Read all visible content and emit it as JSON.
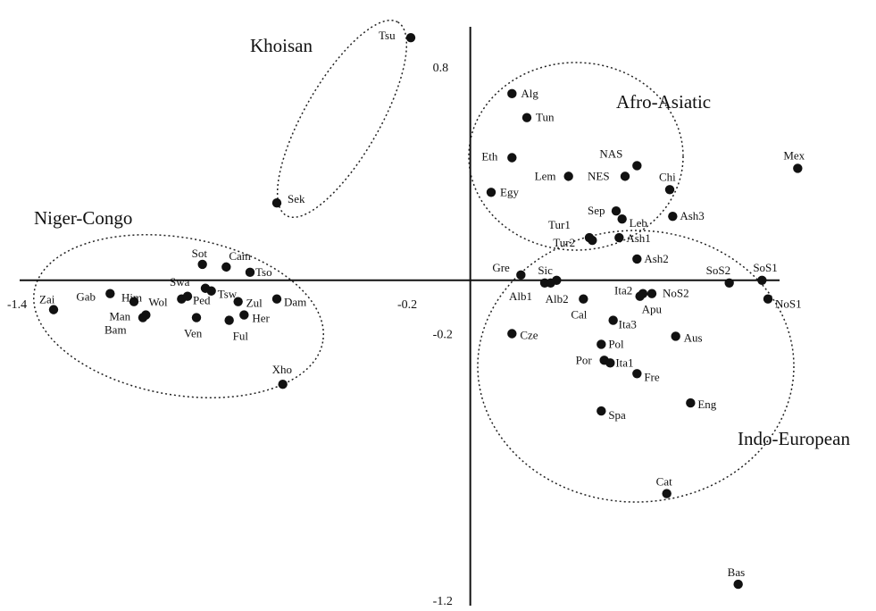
{
  "chart_data": {
    "type": "scatter",
    "title": "",
    "xlabel": "",
    "ylabel": "",
    "xlim": [
      -1.4,
      1.0
    ],
    "ylim": [
      -1.2,
      0.95
    ],
    "x_ticks": [
      {
        "value": -1.4,
        "label": "-1.4"
      },
      {
        "value": -0.2,
        "label": "-0.2"
      }
    ],
    "y_ticks": [
      {
        "value": 0.8,
        "label": "0.8"
      },
      {
        "value": -0.2,
        "label": "-0.2"
      },
      {
        "value": -1.2,
        "label": "-1.2"
      }
    ],
    "grid": false,
    "points": [
      {
        "label": "Tsu",
        "x": -0.2,
        "y": 0.91
      },
      {
        "label": "Sek",
        "x": -0.65,
        "y": 0.29
      },
      {
        "label": "Alg",
        "x": 0.14,
        "y": 0.7
      },
      {
        "label": "Tun",
        "x": 0.19,
        "y": 0.61
      },
      {
        "label": "Eth",
        "x": 0.14,
        "y": 0.46
      },
      {
        "label": "Egy",
        "x": 0.07,
        "y": 0.33
      },
      {
        "label": "Lem",
        "x": 0.33,
        "y": 0.39
      },
      {
        "label": "NAS",
        "x": 0.56,
        "y": 0.43
      },
      {
        "label": "NES",
        "x": 0.52,
        "y": 0.39
      },
      {
        "label": "Chi",
        "x": 0.67,
        "y": 0.34
      },
      {
        "label": "Mex",
        "x": 1.1,
        "y": 0.42
      },
      {
        "label": "Sep",
        "x": 0.49,
        "y": 0.26
      },
      {
        "label": "Leb",
        "x": 0.51,
        "y": 0.23
      },
      {
        "label": "Ash3",
        "x": 0.68,
        "y": 0.24
      },
      {
        "label": "Tur1",
        "x": 0.4,
        "y": 0.16
      },
      {
        "label": "Tur2",
        "x": 0.41,
        "y": 0.15
      },
      {
        "label": "Ash1",
        "x": 0.5,
        "y": 0.16
      },
      {
        "label": "Ash2",
        "x": 0.56,
        "y": 0.08
      },
      {
        "label": "Gre",
        "x": 0.17,
        "y": 0.02
      },
      {
        "label": "Sic",
        "x": 0.29,
        "y": 0.0
      },
      {
        "label": "Alb1",
        "x": 0.25,
        "y": -0.01
      },
      {
        "label": "Alb2",
        "x": 0.27,
        "y": -0.01
      },
      {
        "label": "Ita2",
        "x": 0.58,
        "y": -0.05
      },
      {
        "label": "NoS2",
        "x": 0.61,
        "y": -0.05
      },
      {
        "label": "SoS2",
        "x": 0.87,
        "y": -0.01
      },
      {
        "label": "SoS1",
        "x": 0.98,
        "y": 0.0
      },
      {
        "label": "NoS1",
        "x": 1.0,
        "y": -0.07
      },
      {
        "label": "Cal",
        "x": 0.38,
        "y": -0.07
      },
      {
        "label": "Apu",
        "x": 0.57,
        "y": -0.06
      },
      {
        "label": "Ita3",
        "x": 0.48,
        "y": -0.15
      },
      {
        "label": "Cze",
        "x": 0.14,
        "y": -0.2
      },
      {
        "label": "Aus",
        "x": 0.69,
        "y": -0.21
      },
      {
        "label": "Pol",
        "x": 0.44,
        "y": -0.24
      },
      {
        "label": "Por",
        "x": 0.45,
        "y": -0.3
      },
      {
        "label": "Ita1",
        "x": 0.47,
        "y": -0.31
      },
      {
        "label": "Fre",
        "x": 0.56,
        "y": -0.35
      },
      {
        "label": "Eng",
        "x": 0.74,
        "y": -0.46
      },
      {
        "label": "Spa",
        "x": 0.44,
        "y": -0.49
      },
      {
        "label": "Cat",
        "x": 0.66,
        "y": -0.8
      },
      {
        "label": "Bas",
        "x": 0.9,
        "y": -1.14
      },
      {
        "label": "Zai",
        "x": -1.4,
        "y": -0.11
      },
      {
        "label": "Gab",
        "x": -1.21,
        "y": -0.05
      },
      {
        "label": "Him",
        "x": -1.13,
        "y": -0.08
      },
      {
        "label": "Man",
        "x": -1.09,
        "y": -0.13
      },
      {
        "label": "Bam",
        "x": -1.1,
        "y": -0.14
      },
      {
        "label": "Wol",
        "x": -0.97,
        "y": -0.07
      },
      {
        "label": "Ped",
        "x": -0.95,
        "y": -0.06
      },
      {
        "label": "Swa",
        "x": -0.89,
        "y": -0.03
      },
      {
        "label": "Tsw",
        "x": -0.87,
        "y": -0.04
      },
      {
        "label": "Sot",
        "x": -0.9,
        "y": 0.06
      },
      {
        "label": "Cam",
        "x": -0.82,
        "y": 0.05
      },
      {
        "label": "Tso",
        "x": -0.74,
        "y": 0.03
      },
      {
        "label": "Zul",
        "x": -0.78,
        "y": -0.08
      },
      {
        "label": "Dam",
        "x": -0.65,
        "y": -0.07
      },
      {
        "label": "Ven",
        "x": -0.92,
        "y": -0.14
      },
      {
        "label": "Ful",
        "x": -0.81,
        "y": -0.15
      },
      {
        "label": "Her",
        "x": -0.76,
        "y": -0.13
      },
      {
        "label": "Xho",
        "x": -0.63,
        "y": -0.39
      }
    ],
    "groups": [
      "Khoisan",
      "Afro-Asiatic",
      "Niger-Congo",
      "Indo-European"
    ]
  }
}
